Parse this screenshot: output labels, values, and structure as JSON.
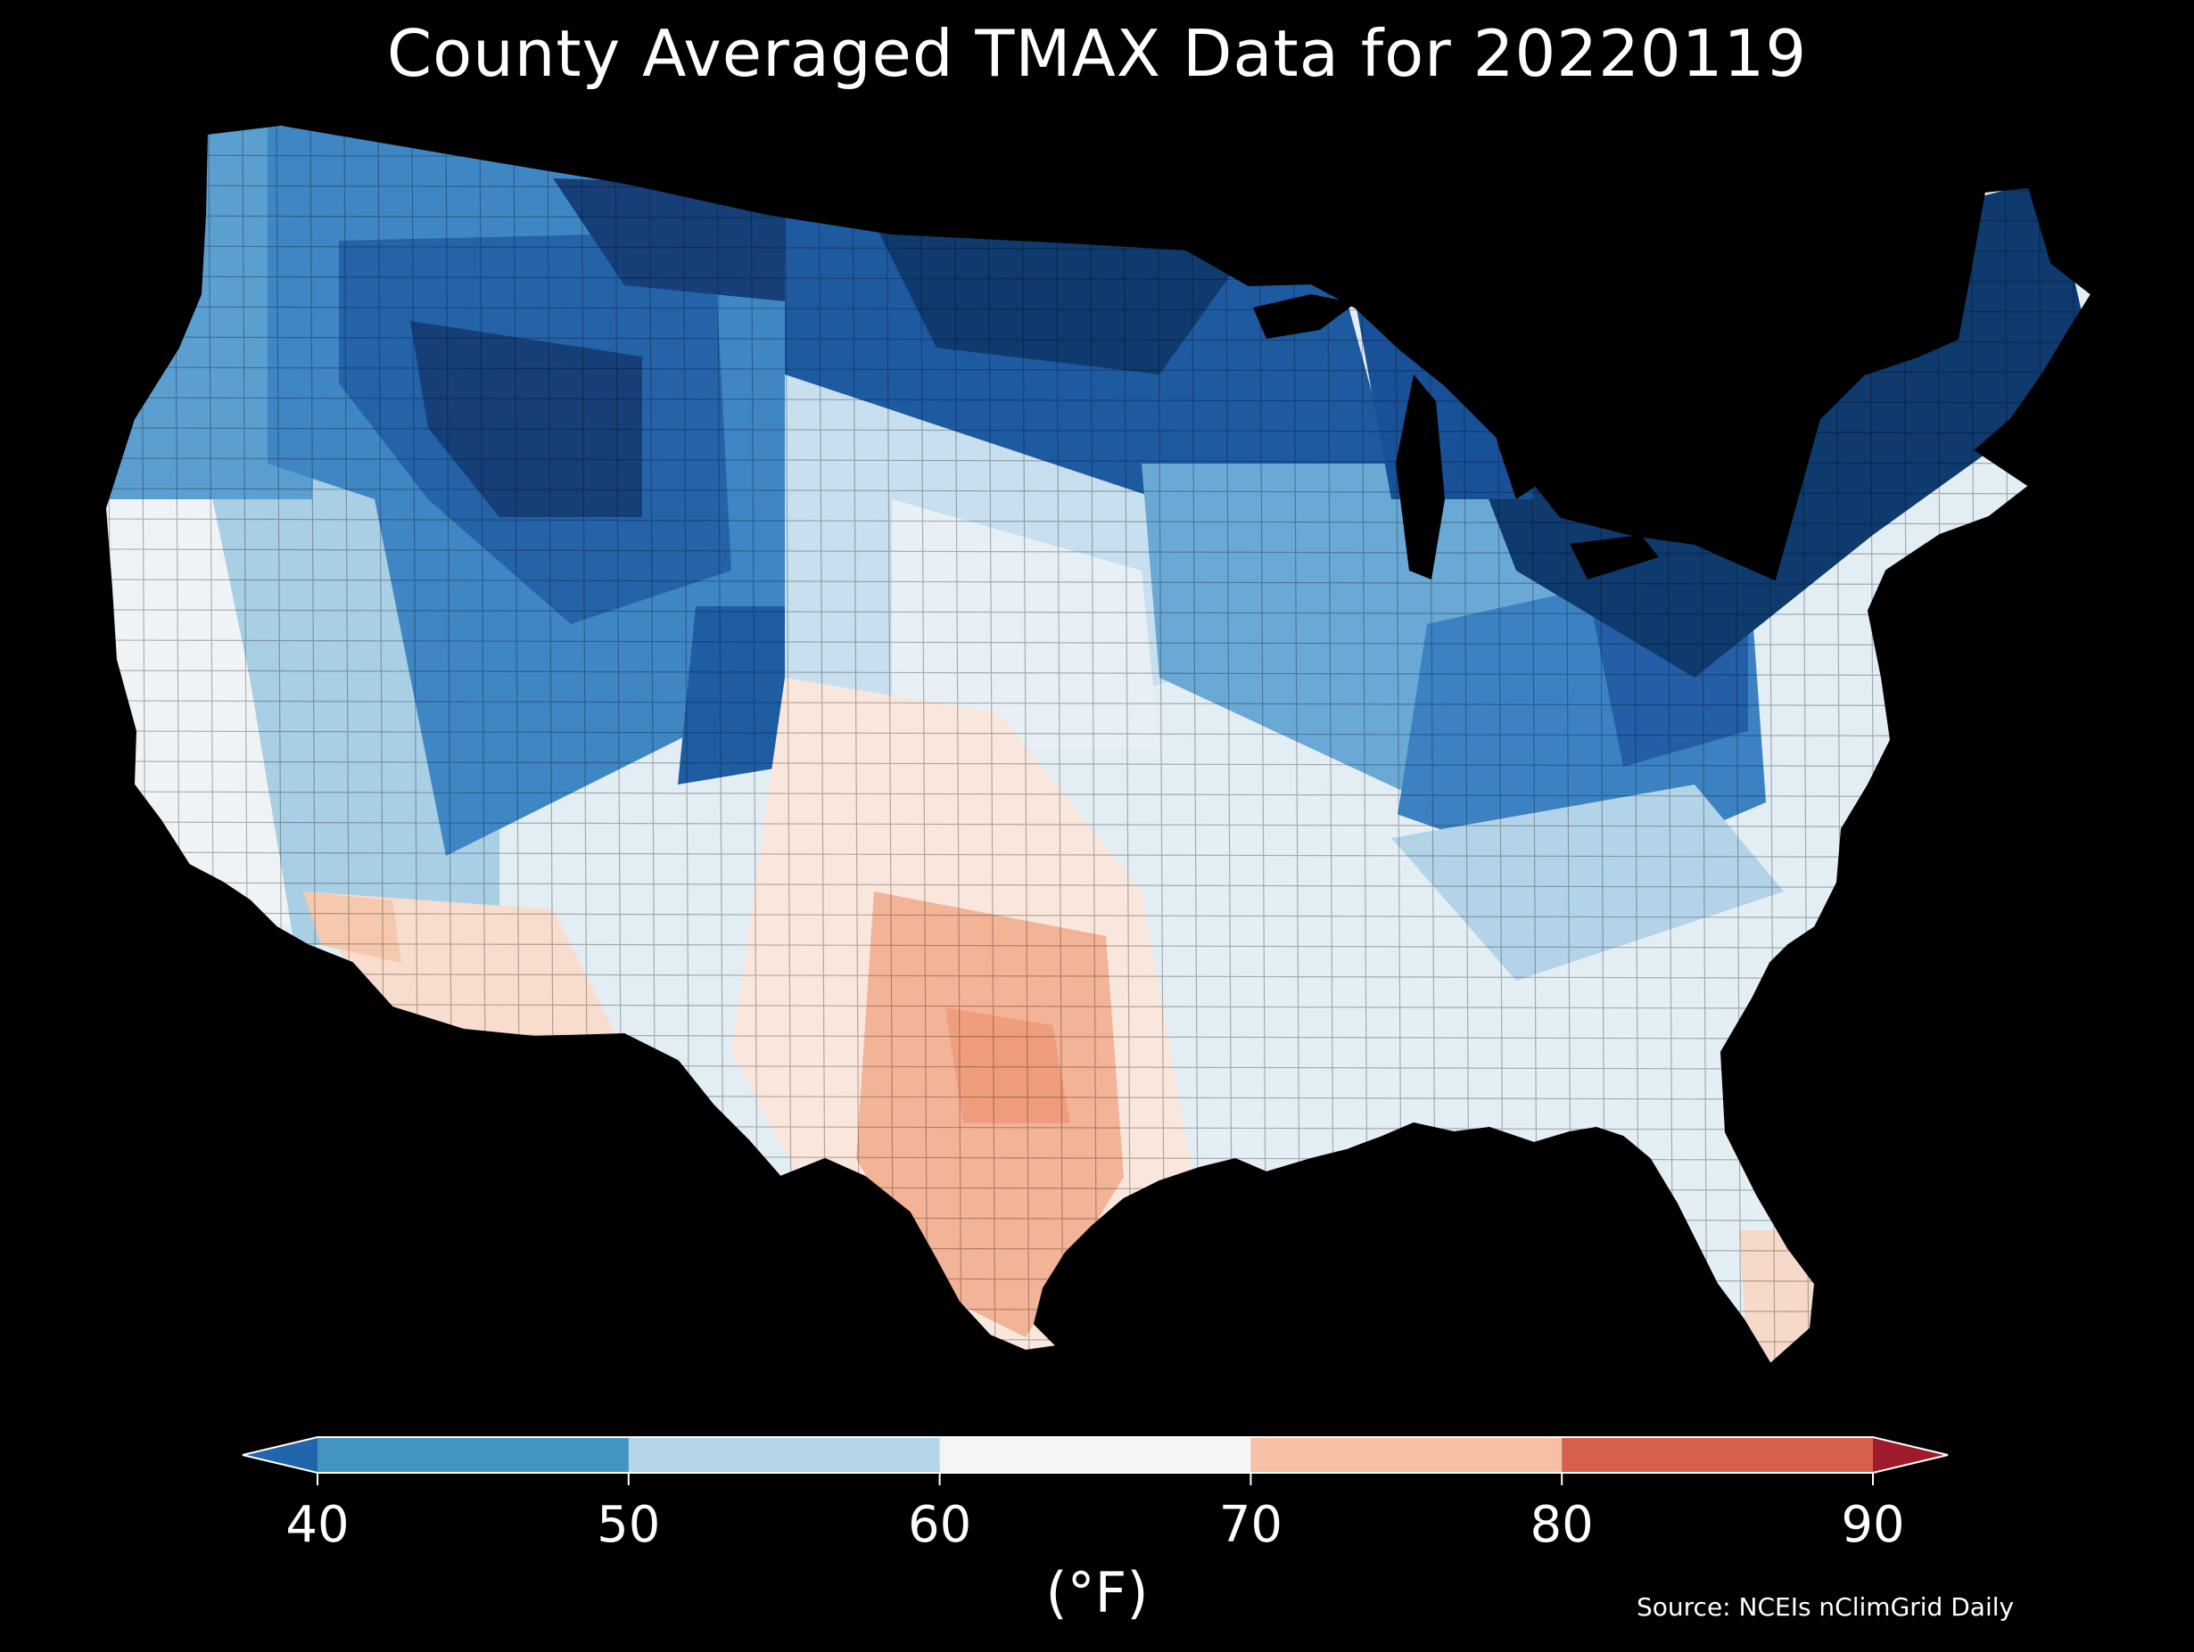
{
  "title": "County Averaged TMAX Data for 20220119",
  "colorbar": {
    "label": "(°F)",
    "ticks": [
      "40",
      "50",
      "60",
      "70",
      "80",
      "90"
    ],
    "bins": [
      {
        "range": [
          null,
          40
        ],
        "color": "#2166ac"
      },
      {
        "range": [
          40,
          50
        ],
        "color": "#4393c3"
      },
      {
        "range": [
          50,
          60
        ],
        "color": "#b5d5e8"
      },
      {
        "range": [
          60,
          70
        ],
        "color": "#f5f5f5"
      },
      {
        "range": [
          70,
          80
        ],
        "color": "#f7bfa3"
      },
      {
        "range": [
          80,
          90
        ],
        "color": "#d6604d"
      },
      {
        "range": [
          90,
          null
        ],
        "color": "#9e1a2c"
      }
    ]
  },
  "source": "Source: NCEIs nClimGrid Daily",
  "map_colors": {
    "darkest": "#0b3a6e",
    "dark": "#1e5fa6",
    "mid_blue": "#4a90c6",
    "light_blue": "#a7cde4",
    "pale": "#dfeaf2",
    "white": "#f4f4f4",
    "peach": "#f6c8b0",
    "salmon": "#f1a07f"
  }
}
